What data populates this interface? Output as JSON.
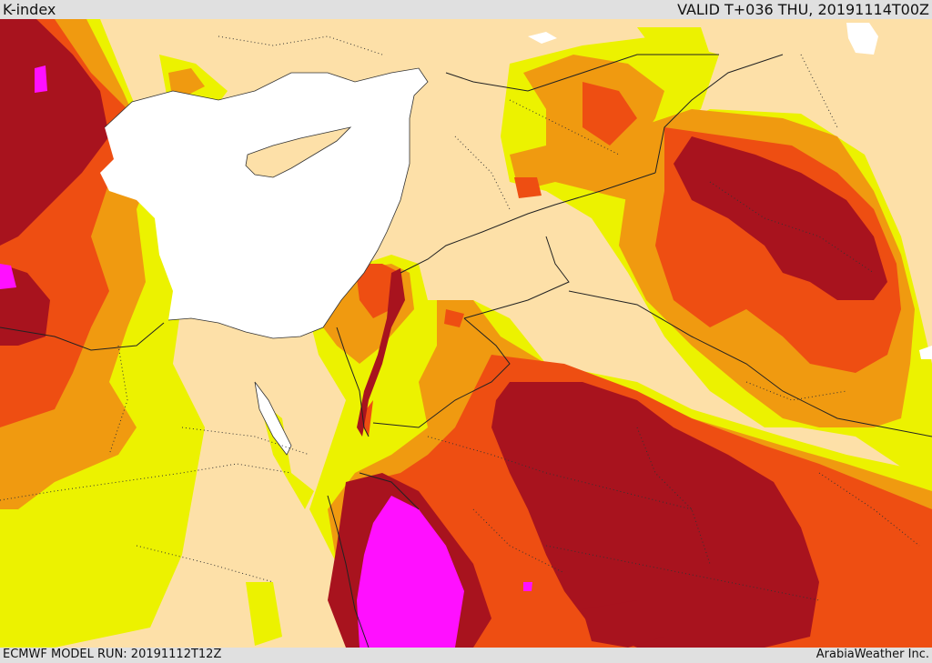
{
  "header": {
    "title": "K-index",
    "valid": "VALID T+036 THU, 20191114T00Z"
  },
  "footer": {
    "model_run": "ECMWF MODEL RUN: 20191112T12Z",
    "credit": "ArabiaWeather Inc."
  },
  "colors": {
    "background": "#fde0a8",
    "level_1": "#ecf200",
    "level_2": "#f09a10",
    "level_3": "#ee4e12",
    "level_4": "#a8131e",
    "level_5": "#ff10ff",
    "water": "#ffffff"
  }
}
